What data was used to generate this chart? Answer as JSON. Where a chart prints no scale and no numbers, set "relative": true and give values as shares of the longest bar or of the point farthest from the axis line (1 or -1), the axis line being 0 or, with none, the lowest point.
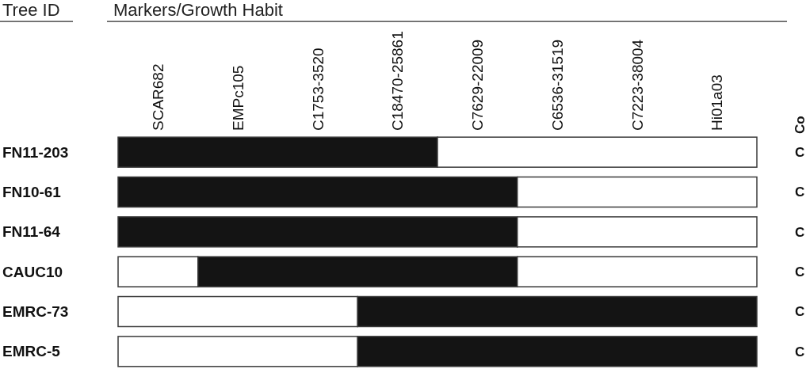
{
  "chart_data": {
    "type": "bar",
    "orientation": "horizontal",
    "stacked": true,
    "relative": true,
    "categories": [
      "FN11-203",
      "FN10-61",
      "FN11-64",
      "CAUC10",
      "EMRC-73",
      "EMRC-5"
    ],
    "series": [
      {
        "color": "#ffffff",
        "values": [
          null,
          null,
          null,
          0.125,
          0.375,
          0.375
        ]
      },
      {
        "color": "#141414",
        "values": [
          0.5,
          0.625,
          0.625,
          0.5,
          0.625,
          0.625
        ]
      },
      {
        "color": "#ffffff",
        "values": [
          0.5,
          0.375,
          0.375,
          0.375,
          null,
          null
        ]
      }
    ],
    "annotations": [
      "Tree ID",
      "Markers/Growth Habit",
      "SCAR682",
      "EMPc105",
      "C1753-3520",
      "C18470-25861",
      "C7629-22009",
      "C6536-31519",
      "C7223-38004",
      "Hi01a03",
      "Co",
      "C",
      "C",
      "C",
      "C",
      "C",
      "C"
    ]
  }
}
